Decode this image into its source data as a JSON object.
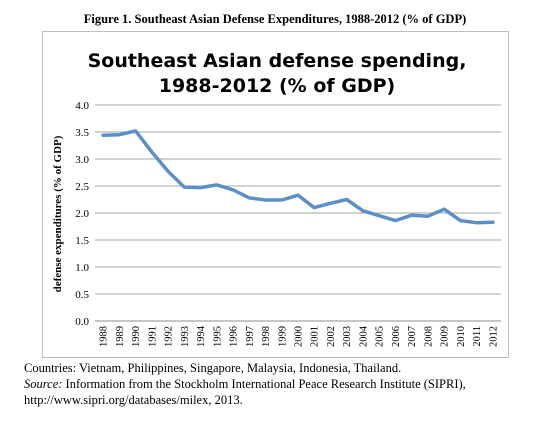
{
  "figure_caption": "Figure 1. Southeast Asian Defense Expenditures, 1988-2012 (% of GDP)",
  "chart_data": {
    "type": "line",
    "title_line1": "Southeast Asian defense spending,",
    "title_line2": "1988-2012 (% of GDP)",
    "ylabel": "defense expenditures (% of GDP)",
    "xlabel": "",
    "ylim": [
      0,
      4.0
    ],
    "yticks": [
      "0.0",
      "0.5",
      "1.0",
      "1.5",
      "2.0",
      "2.5",
      "3.0",
      "3.5",
      "4.0"
    ],
    "grid": true,
    "line_color": "#5b8fc9",
    "categories": [
      "1988",
      "1989",
      "1990",
      "1991",
      "1992",
      "1993",
      "1994",
      "1995",
      "1996",
      "1997",
      "1998",
      "1999",
      "2000",
      "2001",
      "2002",
      "2003",
      "2004",
      "2005",
      "2006",
      "2007",
      "2008",
      "2009",
      "2010",
      "2011",
      "2012"
    ],
    "values": [
      3.44,
      3.45,
      3.52,
      3.13,
      2.77,
      2.48,
      2.47,
      2.52,
      2.43,
      2.28,
      2.24,
      2.24,
      2.33,
      2.1,
      2.18,
      2.25,
      2.04,
      1.95,
      1.86,
      1.96,
      1.94,
      2.07,
      1.86,
      1.82,
      1.83
    ]
  },
  "notes": {
    "countries": "Countries: Vietnam, Philippines, Singapore, Malaysia, Indonesia, Thailand.",
    "source_label": "Source:",
    "source_text": " Information from the Stockholm International Peace Research Institute (SIPRI),",
    "source_url": "http://www.sipri.org/databases/milex, 2013."
  }
}
